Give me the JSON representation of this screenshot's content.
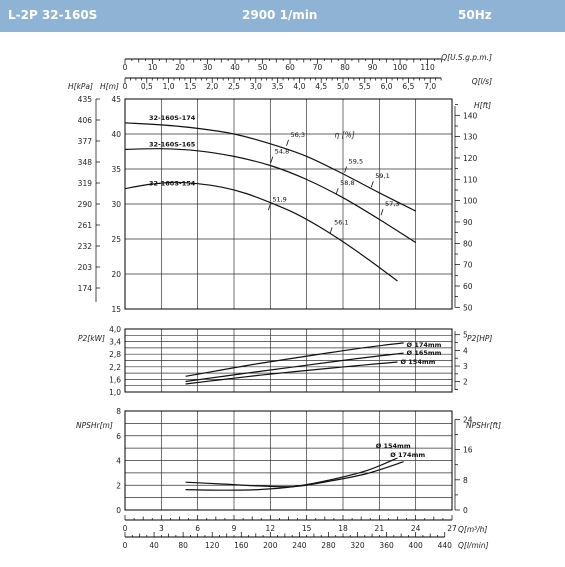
{
  "header": {
    "model": "L-2P 32-160S",
    "speed": "2900 1/min",
    "frequency": "50Hz"
  },
  "colors": {
    "header_bg": "#8fb3d4",
    "curve": "#111111",
    "grid": "#333333"
  },
  "axes": {
    "top_usgpm": {
      "label": "Q[U.S.g.p.m.]",
      "ticks": [
        0,
        10,
        20,
        30,
        40,
        50,
        60,
        70,
        80,
        90,
        100,
        110
      ]
    },
    "top_ls": {
      "label": "Q[l/s]",
      "ticks": [
        "0",
        "0,5",
        "1,0",
        "1,5",
        "2,0",
        "2,5",
        "3,0",
        "3,5",
        "4,0",
        "4,5",
        "5,0",
        "5,5",
        "6,0",
        "6,5",
        "7,0"
      ]
    },
    "bottom_m3h": {
      "label": "Q[m³/h]",
      "ticks": [
        0,
        3,
        6,
        9,
        12,
        15,
        18,
        21,
        24,
        27
      ]
    },
    "bottom_lmin": {
      "label": "Q[l/min]",
      "ticks": [
        0,
        40,
        80,
        120,
        160,
        200,
        240,
        280,
        320,
        360,
        400,
        440
      ]
    },
    "h_kpa": {
      "label": "H[kPa]",
      "ticks": [
        435,
        406,
        377,
        348,
        319,
        290,
        261,
        232,
        203,
        174
      ]
    },
    "h_m": {
      "label": "H[m]",
      "ticks": [
        45,
        40,
        35,
        30,
        25,
        20,
        15
      ]
    },
    "h_ft": {
      "label": "H[ft]",
      "ticks": [
        140,
        130,
        120,
        110,
        100,
        90,
        80,
        70,
        60,
        50
      ]
    },
    "p2_kw": {
      "label": "P2[kW]",
      "ticks": [
        "4,0",
        "3,4",
        "2,8",
        "2,2",
        "1,6",
        "1,0"
      ]
    },
    "p2_hp": {
      "label": "P2[HP]",
      "ticks": [
        5,
        4,
        3,
        2
      ]
    },
    "npsh_m": {
      "label": "NPSHr[m]",
      "ticks": [
        8,
        6,
        4,
        2,
        0
      ]
    },
    "npsh_ft": {
      "label": "NPSHr[ft]",
      "ticks": [
        24,
        16,
        8,
        0
      ]
    }
  },
  "chart_data": [
    {
      "type": "line",
      "title": "",
      "xlabel": "Q[m³/h]",
      "ylabel": "H[m]",
      "xlim": [
        0,
        27
      ],
      "ylim": [
        15,
        45
      ],
      "eta_label": "η [%]",
      "series": [
        {
          "name": "32-160S-174",
          "x": [
            0,
            3,
            6,
            9,
            12,
            15,
            18,
            21,
            24
          ],
          "y": [
            41.6,
            41.3,
            40.8,
            40.0,
            38.6,
            36.8,
            34.3,
            31.6,
            29.0
          ]
        },
        {
          "name": "32-160S-165",
          "x": [
            0,
            3,
            6,
            9,
            12,
            15,
            18,
            21,
            24
          ],
          "y": [
            37.8,
            37.9,
            37.6,
            36.8,
            35.5,
            33.5,
            30.9,
            27.8,
            24.5
          ]
        },
        {
          "name": "32-160S-154",
          "x": [
            0,
            2,
            4,
            6,
            8,
            10,
            12,
            14,
            16,
            18,
            20,
            22.5
          ],
          "y": [
            32.2,
            32.8,
            33.1,
            32.9,
            32.4,
            31.5,
            30.2,
            28.7,
            26.8,
            24.6,
            22.2,
            19.0
          ]
        }
      ],
      "efficiency_labels": [
        {
          "text": "56,3",
          "x": 13.5,
          "y": 39.3
        },
        {
          "text": "54,8",
          "x": 12.2,
          "y": 36.9
        },
        {
          "text": "59,5",
          "x": 18.3,
          "y": 35.5
        },
        {
          "text": "59,1",
          "x": 20.5,
          "y": 33.4
        },
        {
          "text": "58,8",
          "x": 17.6,
          "y": 32.4
        },
        {
          "text": "51,9",
          "x": 12.0,
          "y": 30.1
        },
        {
          "text": "57,3",
          "x": 21.3,
          "y": 29.4
        },
        {
          "text": "56,1",
          "x": 17.1,
          "y": 26.8
        }
      ]
    },
    {
      "type": "line",
      "title": "",
      "xlabel": "Q[m³/h]",
      "ylabel": "P2[kW]",
      "xlim": [
        0,
        27
      ],
      "ylim": [
        1.0,
        4.0
      ],
      "series": [
        {
          "name": "Ø 174mm",
          "x": [
            5,
            8,
            11,
            14,
            17,
            20,
            23
          ],
          "y": [
            1.75,
            2.05,
            2.35,
            2.62,
            2.88,
            3.13,
            3.34
          ]
        },
        {
          "name": "Ø 165mm",
          "x": [
            5,
            8,
            11,
            14,
            17,
            20,
            23
          ],
          "y": [
            1.5,
            1.74,
            1.97,
            2.2,
            2.43,
            2.65,
            2.85
          ]
        },
        {
          "name": "Ø 154mm",
          "x": [
            5,
            8,
            11,
            14,
            17,
            20,
            22.5
          ],
          "y": [
            1.38,
            1.59,
            1.79,
            1.97,
            2.14,
            2.3,
            2.43
          ]
        }
      ]
    },
    {
      "type": "line",
      "title": "",
      "xlabel": "Q[m³/h]",
      "ylabel": "NPSHr[m]",
      "xlim": [
        0,
        27
      ],
      "ylim": [
        0,
        8
      ],
      "series": [
        {
          "name": "Ø 154mm",
          "x": [
            5,
            8,
            11,
            14,
            17,
            20,
            22.5
          ],
          "y": [
            1.65,
            1.6,
            1.65,
            1.9,
            2.45,
            3.2,
            4.2
          ]
        },
        {
          "name": "Ø 174mm",
          "x": [
            5,
            8,
            11,
            14,
            17,
            20,
            23
          ],
          "y": [
            2.25,
            2.1,
            1.95,
            1.9,
            2.35,
            2.95,
            3.9
          ]
        }
      ]
    }
  ]
}
